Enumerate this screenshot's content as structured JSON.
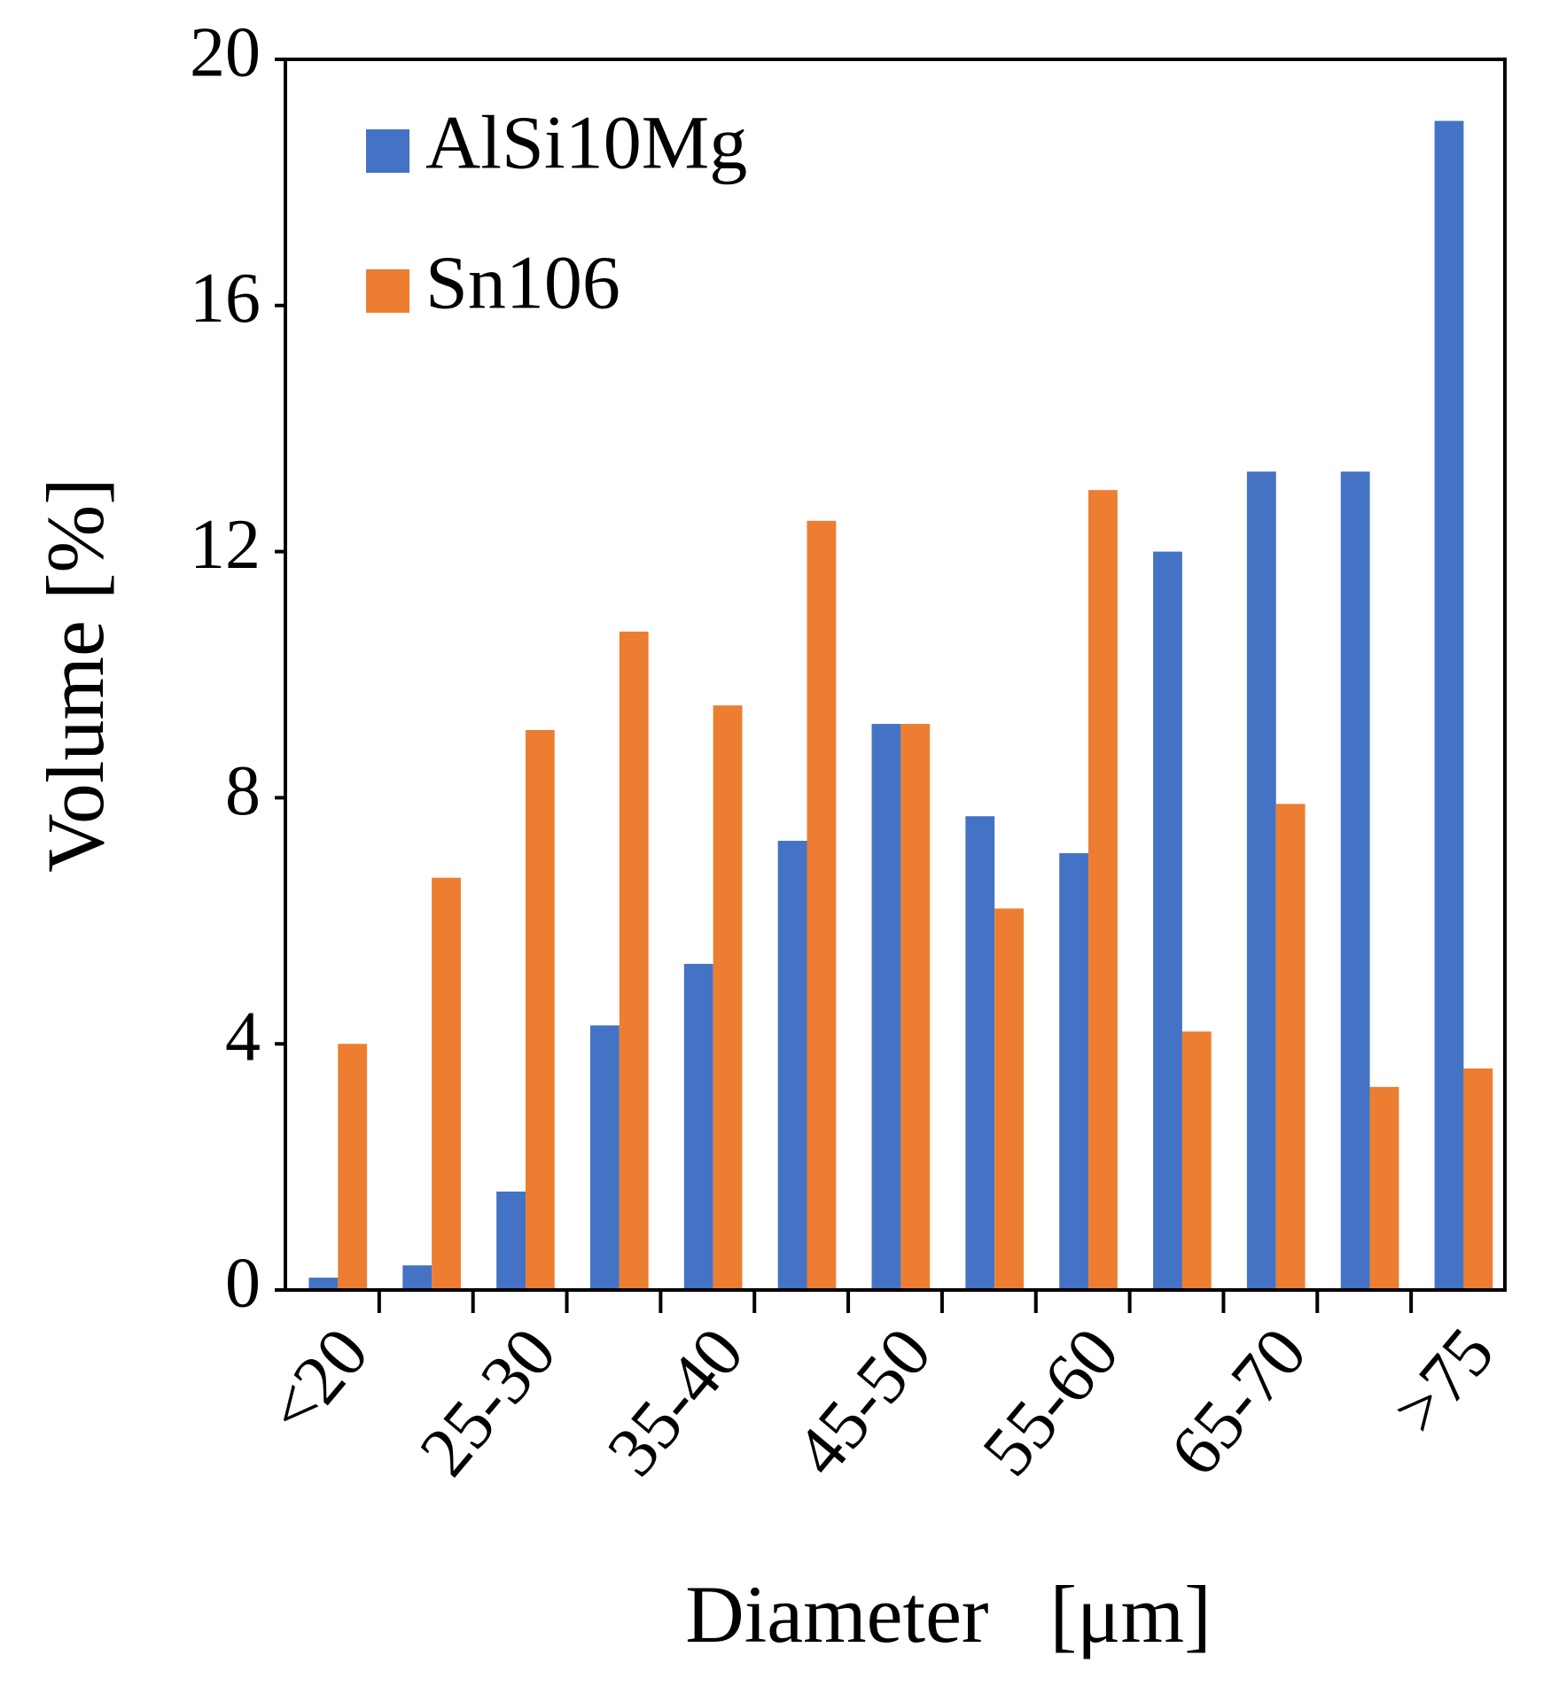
{
  "chart_data": {
    "type": "bar",
    "x_label": "Diameter   [μm]",
    "y_label": "Volume [%]",
    "categories": [
      "<20",
      null,
      "25-30",
      null,
      "35-40",
      null,
      "45-50",
      null,
      "55-60",
      null,
      "65-70",
      null,
      ">75"
    ],
    "series": [
      {
        "name": "AlSi10Mg",
        "color": "#4472c4",
        "values": [
          0.2,
          0.4,
          1.6,
          4.3,
          5.3,
          7.3,
          9.2,
          7.7,
          7.1,
          12.0,
          13.3,
          13.3,
          19.0
        ]
      },
      {
        "name": "Sn106",
        "color": "#ed7d31",
        "values": [
          4.0,
          6.7,
          9.1,
          10.7,
          9.5,
          12.5,
          9.2,
          6.2,
          13.0,
          4.2,
          7.9,
          3.3,
          3.6
        ]
      }
    ],
    "ylim": [
      0,
      20
    ],
    "yticks": [
      0,
      4,
      8,
      12,
      16,
      20
    ],
    "grid": false,
    "legend": "upper left"
  }
}
